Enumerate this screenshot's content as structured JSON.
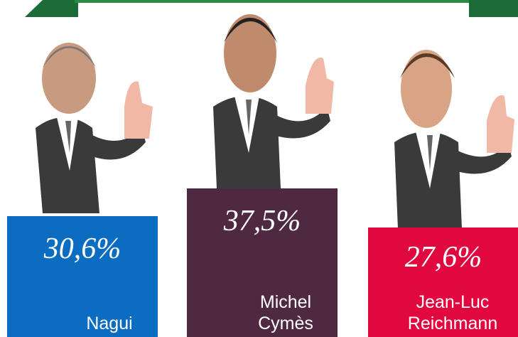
{
  "chart_data": {
    "type": "bar",
    "categories": [
      "Nagui",
      "Michel Cymès",
      "Jean-Luc Reichmann"
    ],
    "values": [
      30.6,
      37.5,
      27.6
    ],
    "value_labels": [
      "30,6%",
      "37,5%",
      "27,6%"
    ],
    "colors": [
      "#0b6cc1",
      "#4f2942",
      "#e1073f"
    ]
  }
}
